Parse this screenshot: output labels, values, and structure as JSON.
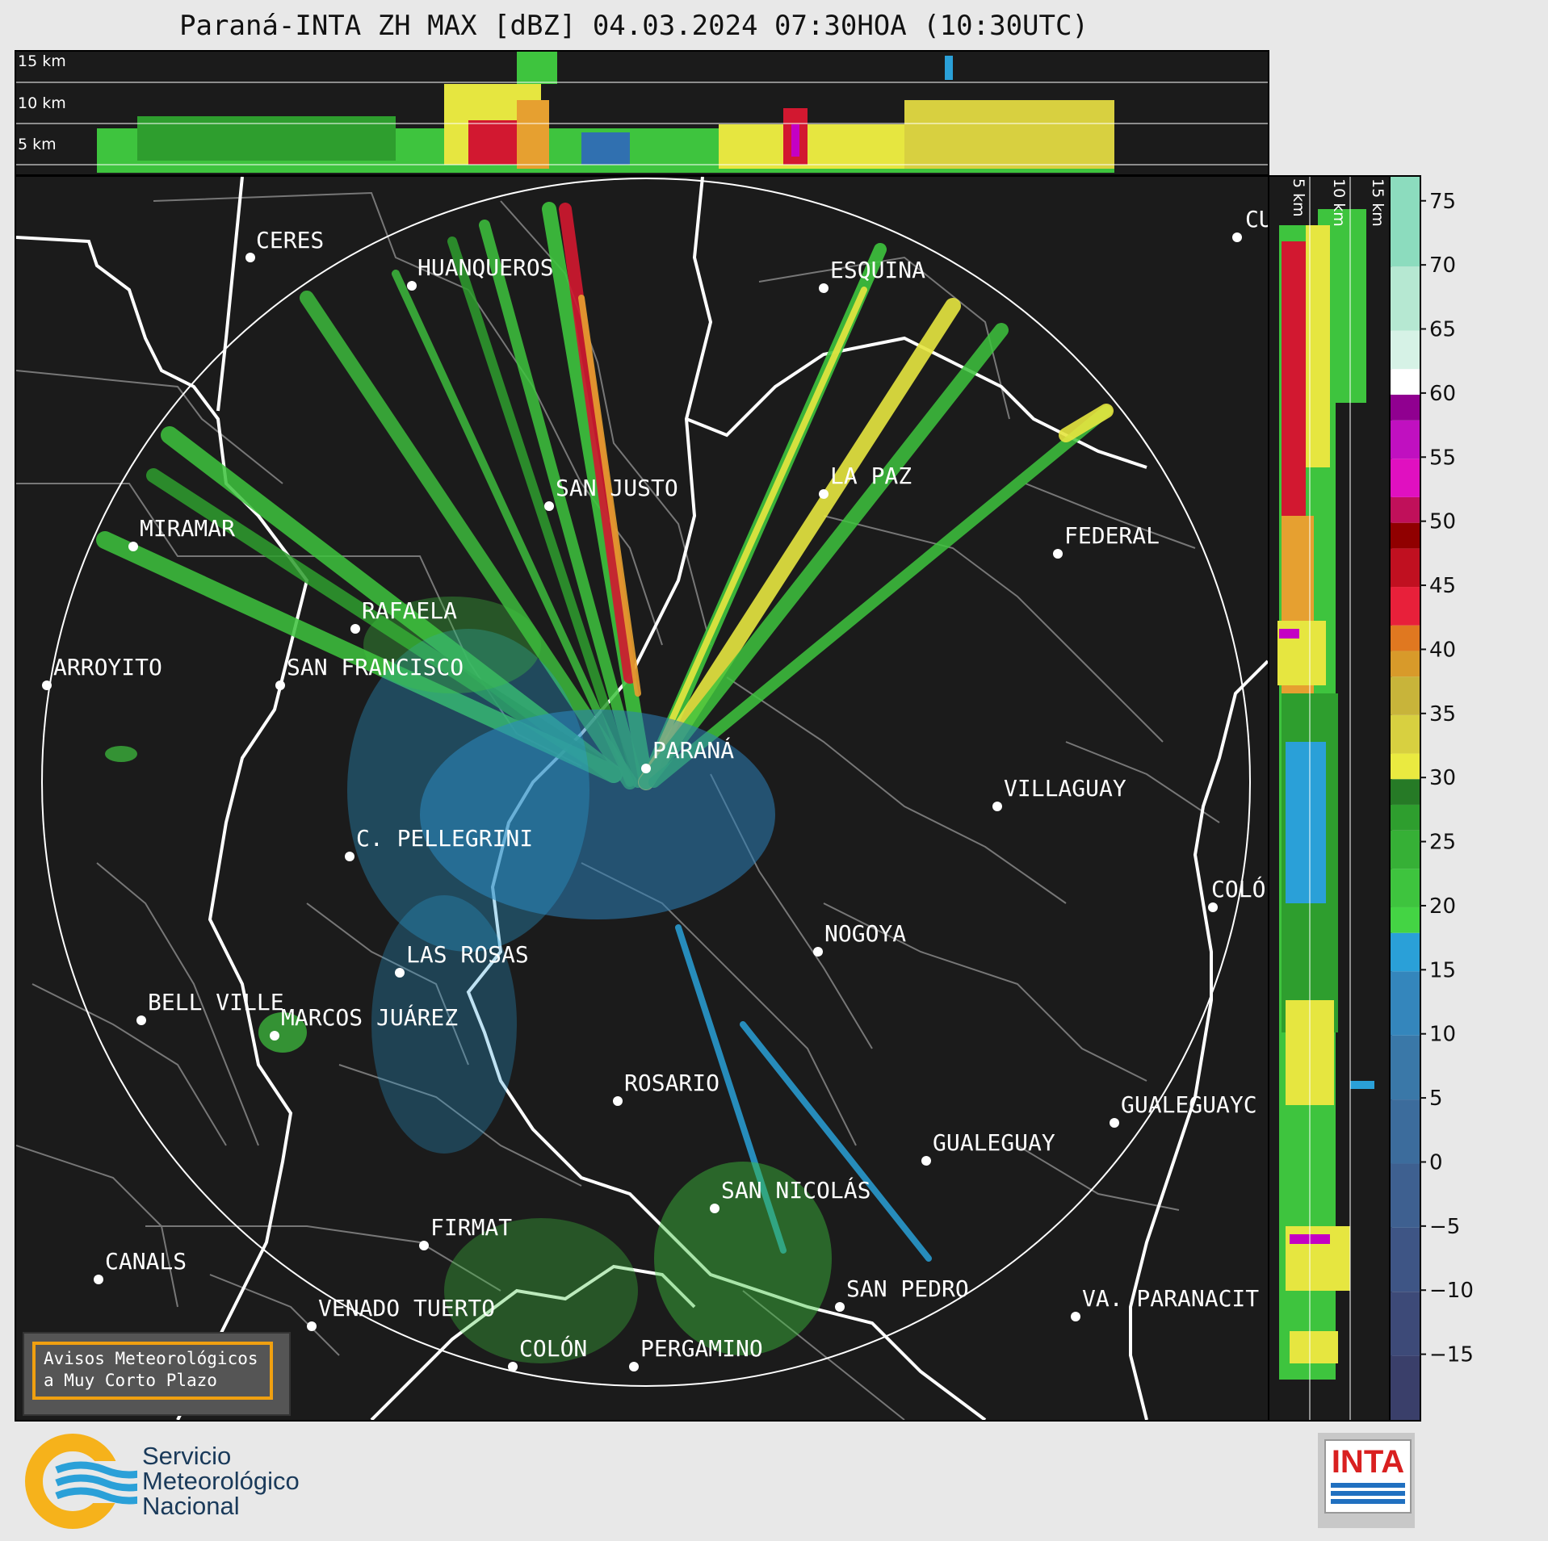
{
  "title": "Paraná-INTA ZH MAX [dBZ] 04.03.2024 07:30HOA (10:30UTC)",
  "top_panel": {
    "altitude_labels": [
      "15 km",
      "10 km",
      "5 km"
    ]
  },
  "side_panel": {
    "altitude_labels": [
      "5 km",
      "10 km",
      "15 km"
    ]
  },
  "cities": [
    {
      "name": "CERES"
    },
    {
      "name": "HUANQUEROS"
    },
    {
      "name": "ESQUINA"
    },
    {
      "name": "CU"
    },
    {
      "name": "SAN JUSTO"
    },
    {
      "name": "LA PAZ"
    },
    {
      "name": "MIRAMAR"
    },
    {
      "name": "FEDERAL"
    },
    {
      "name": "RAFAELA"
    },
    {
      "name": "ARROYITO"
    },
    {
      "name": "SAN FRANCISCO"
    },
    {
      "name": "PARANÁ"
    },
    {
      "name": "VILLAGUAY"
    },
    {
      "name": "C. PELLEGRINI"
    },
    {
      "name": "COLÓ"
    },
    {
      "name": "NOGOYA"
    },
    {
      "name": "LAS ROSAS"
    },
    {
      "name": "BELL VILLE"
    },
    {
      "name": "MARCOS JUÁREZ"
    },
    {
      "name": "ROSARIO"
    },
    {
      "name": "GUALEGUAYC"
    },
    {
      "name": "GUALEGUAY"
    },
    {
      "name": "SAN NICOLÁS"
    },
    {
      "name": "FIRMAT"
    },
    {
      "name": "CANALS"
    },
    {
      "name": "SAN PEDRO"
    },
    {
      "name": "VA. PARANACIT"
    },
    {
      "name": "VENADO TUERTO"
    },
    {
      "name": "COLÓN"
    },
    {
      "name": "PERGAMINO"
    }
  ],
  "colorbar": {
    "ticks": [
      "75",
      "70",
      "65",
      "60",
      "55",
      "50",
      "45",
      "40",
      "35",
      "30",
      "25",
      "20",
      "15",
      "10",
      "5",
      "0",
      "−5",
      "−10",
      "−15"
    ],
    "range": [
      -20,
      77
    ],
    "unit": "dBZ"
  },
  "alert_box": {
    "line1": "Avisos Meteorológicos",
    "line2": "a Muy Corto Plazo"
  },
  "logos": {
    "smn": {
      "line1": "Servicio",
      "line2": "Meteorológico",
      "line3": "Nacional"
    },
    "inta": {
      "text": "INTA"
    }
  }
}
